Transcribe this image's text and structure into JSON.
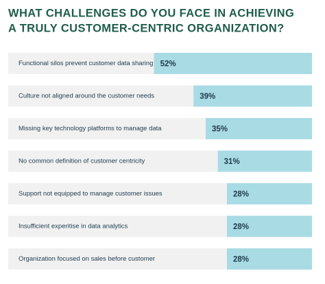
{
  "chart_data": {
    "type": "bar",
    "orientation": "horizontal",
    "title": [
      "WHAT CHALLENGES DO YOU FACE IN ACHIEVING",
      "A TRULY CUSTOMER-CENTRIC ORGANIZATION?"
    ],
    "categories": [
      "Functional silos prevent customer data sharing",
      "Culture not aligned around the customer needs",
      "Missing key technology platforms to manage data",
      "No common definition of customer centricity",
      "Support not equipped to manage customer issues",
      "Insufficient experitise in data analytics",
      "Organization focused on sales before customer"
    ],
    "values": [
      52,
      39,
      35,
      31,
      28,
      28,
      28
    ],
    "value_labels": [
      "52%",
      "39%",
      "35%",
      "31%",
      "28%",
      "28%",
      "28%"
    ],
    "color": "#a9dbe4",
    "xlim": [
      0,
      100
    ]
  }
}
